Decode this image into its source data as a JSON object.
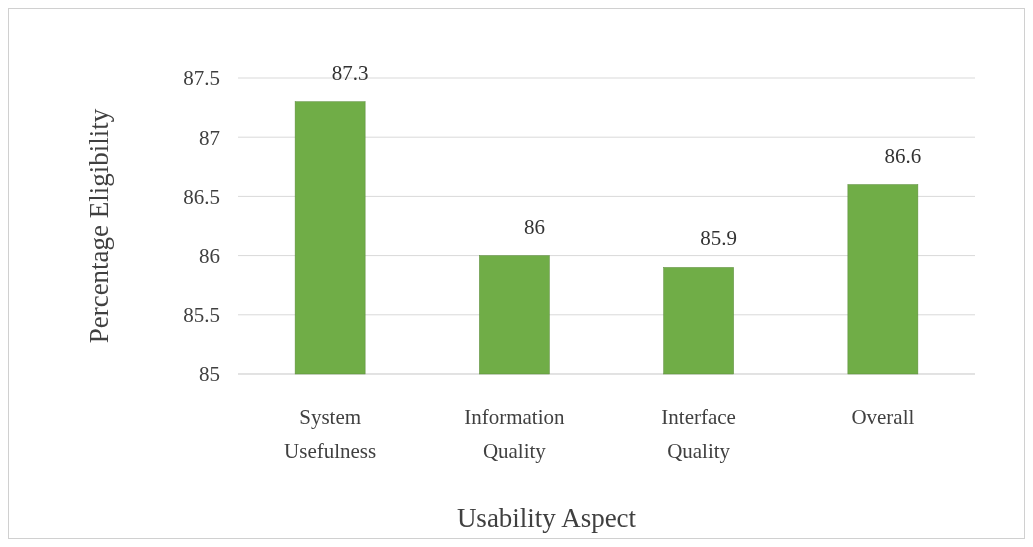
{
  "chart_data": {
    "type": "bar",
    "xlabel": "Usability Aspect",
    "ylabel": "Percentage Eligibility",
    "categories": [
      "System Usefulness",
      "Information Quality",
      "Interface Quality",
      "Overall"
    ],
    "values": [
      87.3,
      86,
      85.9,
      86.6
    ],
    "color": "#70ad47",
    "ylim": [
      85,
      87.5
    ],
    "yticks": [
      85,
      85.5,
      86,
      86.5,
      87,
      87.5
    ],
    "grid": "y",
    "data_labels": true
  }
}
